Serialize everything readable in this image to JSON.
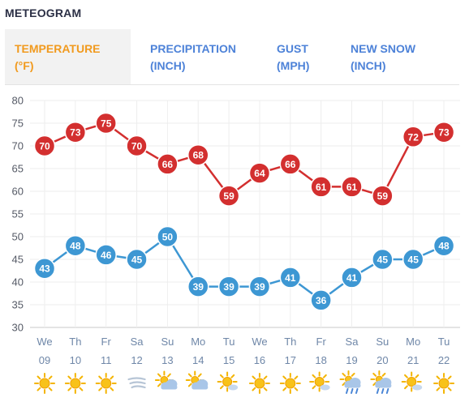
{
  "header": {
    "title": "METEOGRAM"
  },
  "tabs": [
    {
      "line1": "TEMPERATURE",
      "line2": "(°F)",
      "active": true
    },
    {
      "line1": "PRECIPITATION",
      "line2": "(INCH)",
      "active": false
    },
    {
      "line1": "GUST",
      "line2": "(MPH)",
      "active": false
    },
    {
      "line1": "NEW SNOW",
      "line2": "(INCH)",
      "active": false
    }
  ],
  "colors": {
    "high": "#d32f2f",
    "low": "#3d97d3",
    "active_tab": "#f19a1e",
    "tab": "#4d82d8"
  },
  "chart_data": {
    "type": "line",
    "title": "",
    "xlabel": "",
    "ylabel": "",
    "ylim": [
      30,
      80
    ],
    "yticks": [
      30,
      35,
      40,
      45,
      50,
      55,
      60,
      65,
      70,
      75,
      80
    ],
    "grid": true,
    "categories": [
      {
        "dow": "We",
        "date": "09",
        "icon": "sun-icon"
      },
      {
        "dow": "Th",
        "date": "10",
        "icon": "sun-icon"
      },
      {
        "dow": "Fr",
        "date": "11",
        "icon": "sun-icon"
      },
      {
        "dow": "Sa",
        "date": "12",
        "icon": "wind-icon"
      },
      {
        "dow": "Su",
        "date": "13",
        "icon": "partly-cloudy-icon"
      },
      {
        "dow": "Mo",
        "date": "14",
        "icon": "partly-cloudy-icon"
      },
      {
        "dow": "Tu",
        "date": "15",
        "icon": "sun-cloud-icon"
      },
      {
        "dow": "We",
        "date": "16",
        "icon": "sun-icon"
      },
      {
        "dow": "Th",
        "date": "17",
        "icon": "sun-icon"
      },
      {
        "dow": "Fr",
        "date": "18",
        "icon": "sun-cloud-icon"
      },
      {
        "dow": "Sa",
        "date": "19",
        "icon": "rain-sun-icon"
      },
      {
        "dow": "Su",
        "date": "20",
        "icon": "rain-sun-icon"
      },
      {
        "dow": "Mo",
        "date": "21",
        "icon": "sun-cloud-icon"
      },
      {
        "dow": "Tu",
        "date": "22",
        "icon": "sun-icon"
      }
    ],
    "series": [
      {
        "key": "high",
        "values": [
          70,
          73,
          75,
          70,
          66,
          68,
          59,
          64,
          66,
          61,
          61,
          59,
          72,
          73
        ]
      },
      {
        "key": "low",
        "values": [
          43,
          48,
          46,
          45,
          50,
          39,
          39,
          39,
          41,
          36,
          41,
          45,
          45,
          48
        ]
      }
    ]
  }
}
